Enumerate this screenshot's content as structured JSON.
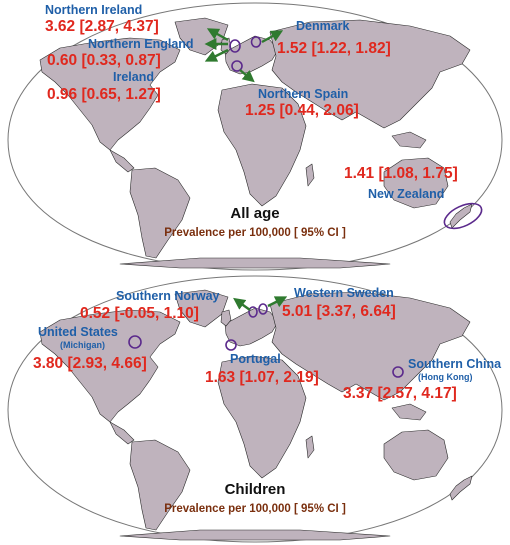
{
  "colors": {
    "land": "#bfb3bd",
    "coast": "#2a2a2a",
    "ocean": "#ffffff",
    "frame": "#777777",
    "region_label": "#1f5fa8",
    "value_label": "#e0281e",
    "caption": "#7a2f0e",
    "marker": "#5b2a8c",
    "arrow": "#2f7a2f"
  },
  "panels": [
    {
      "title": "All age",
      "caption": "Prevalence per 100,000 [ 95% CI ]",
      "regions": [
        {
          "name": "Northern Ireland",
          "value": "3.62 [2.87, 4.37]"
        },
        {
          "name": "Northern England",
          "value": "0.60 [0.33, 0.87]"
        },
        {
          "name": "Ireland",
          "value": "0.96 [0.65, 1.27]"
        },
        {
          "name": "Denmark",
          "value": "1.52 [1.22, 1.82]"
        },
        {
          "name": "Northern Spain",
          "value": "1.25 [0.44, 2.06]"
        },
        {
          "name": "New Zealand",
          "value": "1.41 [1.08, 1.75]"
        }
      ]
    },
    {
      "title": "Children",
      "caption": "Prevalence per 100,000 [ 95% CI ]",
      "regions": [
        {
          "name": "Southern Norway",
          "value": "0.52 [-0.05, 1.10]"
        },
        {
          "name": "Western Sweden",
          "value": "5.01 [3.37, 6.64]"
        },
        {
          "name": "United States",
          "sub": "(Michigan)",
          "value": "3.80 [2.93, 4.66]"
        },
        {
          "name": "Portugal",
          "value": "1.63 [1.07, 2.19]"
        },
        {
          "name": "Southern China",
          "sub": "(Hong Kong)",
          "value": "3.37 [2.57, 4.17]"
        }
      ]
    }
  ]
}
